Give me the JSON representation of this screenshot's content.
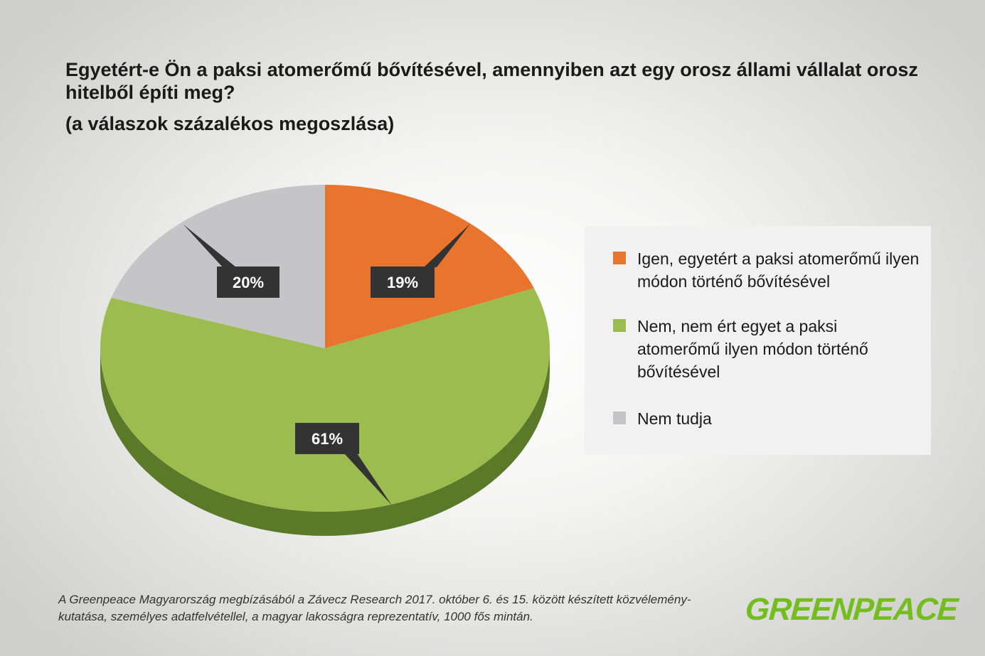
{
  "title": "Egyetért-e Ön a paksi atomerőmű bővítésével, amennyiben azt egy orosz állami vállalat orosz hitelből építi meg?",
  "subtitle": "(a válaszok százalékos megoszlása)",
  "chart_data": {
    "type": "pie",
    "title": "Egyetért-e Ön a paksi atomerőmű bővítésével, amennyiben azt egy orosz állami vállalat orosz hitelből építi meg?",
    "subtitle": "(a válaszok százalékos megoszlása)",
    "slices": [
      {
        "label": "Igen, egyetért a paksi atomerőmű ilyen módon történő bővítésével",
        "value": 19,
        "display": "19%",
        "color": "#e8742e",
        "side_color": "#b3541c"
      },
      {
        "label": "Nem, nem ért egyet a paksi atomerőmű ilyen módon történő bővítésével",
        "value": 61,
        "display": "61%",
        "color": "#9bbd4f",
        "side_color": "#5a7a2a"
      },
      {
        "label": "Nem tudja",
        "value": 20,
        "display": "20%",
        "color": "#c5c5c7",
        "side_color": "#8e8e90"
      }
    ],
    "legend_position": "right"
  },
  "legend": [
    {
      "label": "Igen, egyetért a paksi atomerőmű ilyen módon történő bővítésével",
      "color": "#e8742e"
    },
    {
      "label": "Nem, nem ért egyet a paksi atomerőmű ilyen módon történő bővítésével",
      "color": "#9bbd4f"
    },
    {
      "label": "Nem tudja",
      "color": "#c5c5c7"
    }
  ],
  "footnote": "A Greenpeace Magyarország megbízásából a Závecz Research 2017. október 6. és 15. között készített közvélemény-kutatása, személyes adatfelvétellel, a magyar lakosságra reprezentatív, 1000 fős mintán.",
  "logo": "GREENPEACE"
}
